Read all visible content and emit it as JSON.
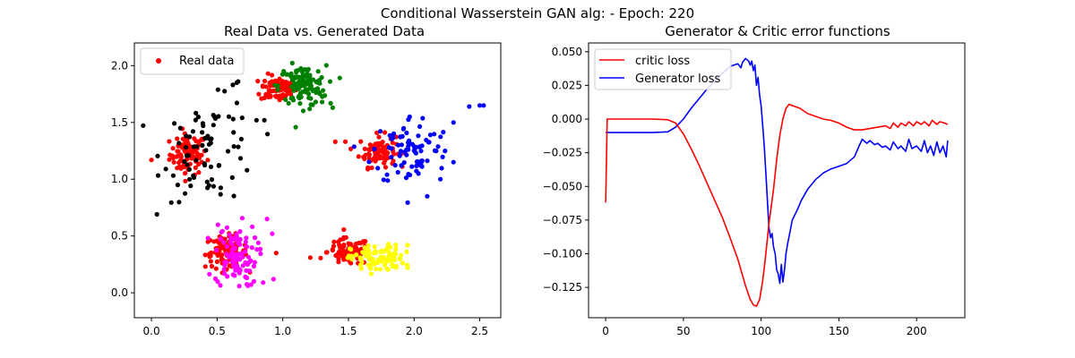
{
  "figure": {
    "suptitle": "Conditional Wasserstein GAN alg: - Epoch: 220"
  },
  "chart_data": [
    {
      "type": "scatter",
      "title": "Real Data vs. Generated Data",
      "xlabel": "",
      "ylabel": "",
      "xlim": [
        -0.13,
        2.66
      ],
      "ylim": [
        -0.22,
        2.2
      ],
      "xticks": [
        "0.0",
        "0.5",
        "1.0",
        "1.5",
        "2.0",
        "2.5"
      ],
      "xtick_values": [
        0.0,
        0.5,
        1.0,
        1.5,
        2.0,
        2.5
      ],
      "yticks": [
        "0.0",
        "0.5",
        "1.0",
        "1.5",
        "2.0"
      ],
      "ytick_values": [
        0.0,
        0.5,
        1.0,
        1.5,
        2.0
      ],
      "legend": {
        "placement": "upper-left",
        "entries": [
          {
            "label": "Real data",
            "color": "#ff0000"
          }
        ]
      },
      "clusters": [
        {
          "role": "real",
          "color": "#ff0000",
          "center": [
            0.28,
            1.22
          ],
          "spread": [
            0.07,
            0.09
          ],
          "n": 90
        },
        {
          "role": "real",
          "color": "#ff0000",
          "center": [
            0.97,
            1.8
          ],
          "spread": [
            0.07,
            0.06
          ],
          "n": 75
        },
        {
          "role": "real",
          "color": "#ff0000",
          "center": [
            1.72,
            1.25
          ],
          "spread": [
            0.07,
            0.07
          ],
          "n": 85
        },
        {
          "role": "real",
          "color": "#ff0000",
          "center": [
            0.57,
            0.36
          ],
          "spread": [
            0.08,
            0.07
          ],
          "n": 90
        },
        {
          "role": "real",
          "color": "#ff0000",
          "center": [
            1.5,
            0.36
          ],
          "spread": [
            0.08,
            0.06
          ],
          "n": 90
        },
        {
          "role": "generated",
          "color": "#000000",
          "center": [
            0.45,
            1.25
          ],
          "spread": [
            0.18,
            0.22
          ],
          "n": 75
        },
        {
          "role": "generated",
          "color": "#008000",
          "center": [
            1.15,
            1.82
          ],
          "spread": [
            0.09,
            0.09
          ],
          "n": 110
        },
        {
          "role": "generated",
          "color": "#0000ff",
          "center": [
            1.98,
            1.25
          ],
          "spread": [
            0.15,
            0.16
          ],
          "n": 85
        },
        {
          "role": "generated",
          "color": "#ff00ff",
          "center": [
            0.64,
            0.33
          ],
          "spread": [
            0.08,
            0.14
          ],
          "n": 95
        },
        {
          "role": "generated",
          "color": "#ffff00",
          "center": [
            1.72,
            0.3
          ],
          "spread": [
            0.1,
            0.06
          ],
          "n": 95
        }
      ],
      "outliers": [
        {
          "color": "#ff0000",
          "points": [
            [
              0.0,
              1.17
            ],
            [
              1.4,
              1.33
            ],
            [
              0.95,
              0.35
            ],
            [
              1.21,
              0.31
            ]
          ]
        },
        {
          "color": "#000000",
          "points": [
            [
              0.8,
              1.52
            ],
            [
              0.86,
              1.52
            ],
            [
              0.65,
              1.85
            ],
            [
              0.62,
              1.83
            ],
            [
              0.66,
              1.86
            ],
            [
              0.22,
              1.45
            ],
            [
              0.2,
              0.95
            ]
          ]
        },
        {
          "color": "#0000ff",
          "points": [
            [
              2.42,
              1.64
            ],
            [
              2.5,
              1.65
            ],
            [
              2.53,
              1.65
            ],
            [
              2.3,
              1.5
            ],
            [
              2.1,
              0.85
            ],
            [
              2.2,
              1.0
            ]
          ]
        },
        {
          "color": "#ff00ff",
          "points": [
            [
              0.92,
              0.52
            ],
            [
              0.93,
              0.12
            ],
            [
              0.85,
              0.09
            ],
            [
              0.78,
              0.1
            ],
            [
              0.88,
              0.65
            ]
          ]
        },
        {
          "color": "#ffff00",
          "points": [
            [
              1.95,
              0.42
            ],
            [
              1.95,
              0.22
            ],
            [
              1.9,
              0.33
            ]
          ]
        },
        {
          "color": "#008000",
          "points": [
            [
              1.38,
              1.63
            ],
            [
              1.3,
              1.68
            ],
            [
              1.27,
              1.95
            ]
          ]
        }
      ]
    },
    {
      "type": "line",
      "title": "Generator & Critic error functions",
      "xlabel": "",
      "ylabel": "",
      "xlim": [
        -11,
        231
      ],
      "ylim": [
        -0.1475,
        0.0565
      ],
      "xticks": [
        "0",
        "50",
        "100",
        "150",
        "200"
      ],
      "xtick_values": [
        0,
        50,
        100,
        150,
        200
      ],
      "yticks": [
        "0.050",
        "0.025",
        "0.000",
        "−0.025",
        "−0.050",
        "−0.075",
        "−0.100",
        "−0.125"
      ],
      "ytick_values": [
        0.05,
        0.025,
        0.0,
        -0.025,
        -0.05,
        -0.075,
        -0.1,
        -0.125
      ],
      "legend": {
        "placement": "upper-left"
      },
      "series": [
        {
          "name": "critic loss",
          "color": "#ff0000",
          "points": [
            [
              0,
              -0.062
            ],
            [
              1,
              0.0
            ],
            [
              10,
              0.0
            ],
            [
              20,
              0.0
            ],
            [
              30,
              0.0
            ],
            [
              40,
              -0.0005
            ],
            [
              45,
              -0.003
            ],
            [
              50,
              -0.011
            ],
            [
              55,
              -0.022
            ],
            [
              60,
              -0.034
            ],
            [
              65,
              -0.047
            ],
            [
              70,
              -0.06
            ],
            [
              75,
              -0.073
            ],
            [
              80,
              -0.088
            ],
            [
              85,
              -0.104
            ],
            [
              90,
              -0.124
            ],
            [
              93,
              -0.134
            ],
            [
              95,
              -0.138
            ],
            [
              97,
              -0.139
            ],
            [
              99,
              -0.134
            ],
            [
              101,
              -0.12
            ],
            [
              103,
              -0.1
            ],
            [
              105,
              -0.078
            ],
            [
              108,
              -0.052
            ],
            [
              110,
              -0.03
            ],
            [
              112,
              -0.012
            ],
            [
              114,
              0.0
            ],
            [
              116,
              0.008
            ],
            [
              118,
              0.011
            ],
            [
              120,
              0.01
            ],
            [
              125,
              0.008
            ],
            [
              130,
              0.004
            ],
            [
              135,
              0.002
            ],
            [
              140,
              0.0
            ],
            [
              145,
              -0.001
            ],
            [
              150,
              -0.003
            ],
            [
              155,
              -0.006
            ],
            [
              160,
              -0.008
            ],
            [
              165,
              -0.008
            ],
            [
              170,
              -0.007
            ],
            [
              175,
              -0.006
            ],
            [
              180,
              -0.005
            ],
            [
              183,
              -0.007
            ],
            [
              185,
              -0.003
            ],
            [
              188,
              -0.006
            ],
            [
              190,
              -0.003
            ],
            [
              193,
              -0.005
            ],
            [
              195,
              -0.002
            ],
            [
              198,
              -0.005
            ],
            [
              200,
              -0.002
            ],
            [
              203,
              -0.004
            ],
            [
              205,
              -0.002
            ],
            [
              208,
              -0.005
            ],
            [
              210,
              -0.001
            ],
            [
              213,
              -0.004
            ],
            [
              215,
              -0.002
            ],
            [
              218,
              -0.003
            ],
            [
              220,
              -0.004
            ]
          ]
        },
        {
          "name": "Generator loss",
          "color": "#0000ff",
          "points": [
            [
              0,
              -0.01
            ],
            [
              10,
              -0.01
            ],
            [
              20,
              -0.01
            ],
            [
              30,
              -0.01
            ],
            [
              40,
              -0.0095
            ],
            [
              45,
              -0.006
            ],
            [
              50,
              0.0
            ],
            [
              55,
              0.008
            ],
            [
              60,
              0.015
            ],
            [
              65,
              0.022
            ],
            [
              70,
              0.028
            ],
            [
              75,
              0.034
            ],
            [
              80,
              0.039
            ],
            [
              85,
              0.041
            ],
            [
              87,
              0.038
            ],
            [
              88,
              0.042
            ],
            [
              90,
              0.045
            ],
            [
              92,
              0.043
            ],
            [
              93,
              0.04
            ],
            [
              94,
              0.043
            ],
            [
              95,
              0.036
            ],
            [
              96,
              0.04
            ],
            [
              97,
              0.025
            ],
            [
              98,
              0.031
            ],
            [
              99,
              0.018
            ],
            [
              100,
              0.01
            ],
            [
              101,
              -0.005
            ],
            [
              102,
              -0.02
            ],
            [
              103,
              -0.04
            ],
            [
              104,
              -0.06
            ],
            [
              105,
              -0.08
            ],
            [
              106,
              -0.088
            ],
            [
              107,
              -0.085
            ],
            [
              108,
              -0.095
            ],
            [
              109,
              -0.1
            ],
            [
              110,
              -0.112
            ],
            [
              111,
              -0.115
            ],
            [
              112,
              -0.122
            ],
            [
              113,
              -0.108
            ],
            [
              114,
              -0.121
            ],
            [
              115,
              -0.112
            ],
            [
              116,
              -0.1
            ],
            [
              117,
              -0.093
            ],
            [
              118,
              -0.087
            ],
            [
              120,
              -0.075
            ],
            [
              123,
              -0.068
            ],
            [
              126,
              -0.06
            ],
            [
              130,
              -0.052
            ],
            [
              135,
              -0.045
            ],
            [
              140,
              -0.04
            ],
            [
              145,
              -0.037
            ],
            [
              150,
              -0.035
            ],
            [
              155,
              -0.033
            ],
            [
              160,
              -0.028
            ],
            [
              163,
              -0.02
            ],
            [
              165,
              -0.015
            ],
            [
              168,
              -0.018
            ],
            [
              170,
              -0.016
            ],
            [
              173,
              -0.019
            ],
            [
              175,
              -0.018
            ],
            [
              178,
              -0.021
            ],
            [
              180,
              -0.02
            ],
            [
              183,
              -0.023
            ],
            [
              185,
              -0.017
            ],
            [
              188,
              -0.022
            ],
            [
              190,
              -0.02
            ],
            [
              193,
              -0.024
            ],
            [
              195,
              -0.015
            ],
            [
              197,
              -0.022
            ],
            [
              200,
              -0.02
            ],
            [
              203,
              -0.024
            ],
            [
              205,
              -0.016
            ],
            [
              207,
              -0.025
            ],
            [
              209,
              -0.02
            ],
            [
              211,
              -0.027
            ],
            [
              213,
              -0.017
            ],
            [
              215,
              -0.025
            ],
            [
              217,
              -0.02
            ],
            [
              219,
              -0.028
            ],
            [
              220,
              -0.016
            ]
          ]
        }
      ]
    }
  ]
}
